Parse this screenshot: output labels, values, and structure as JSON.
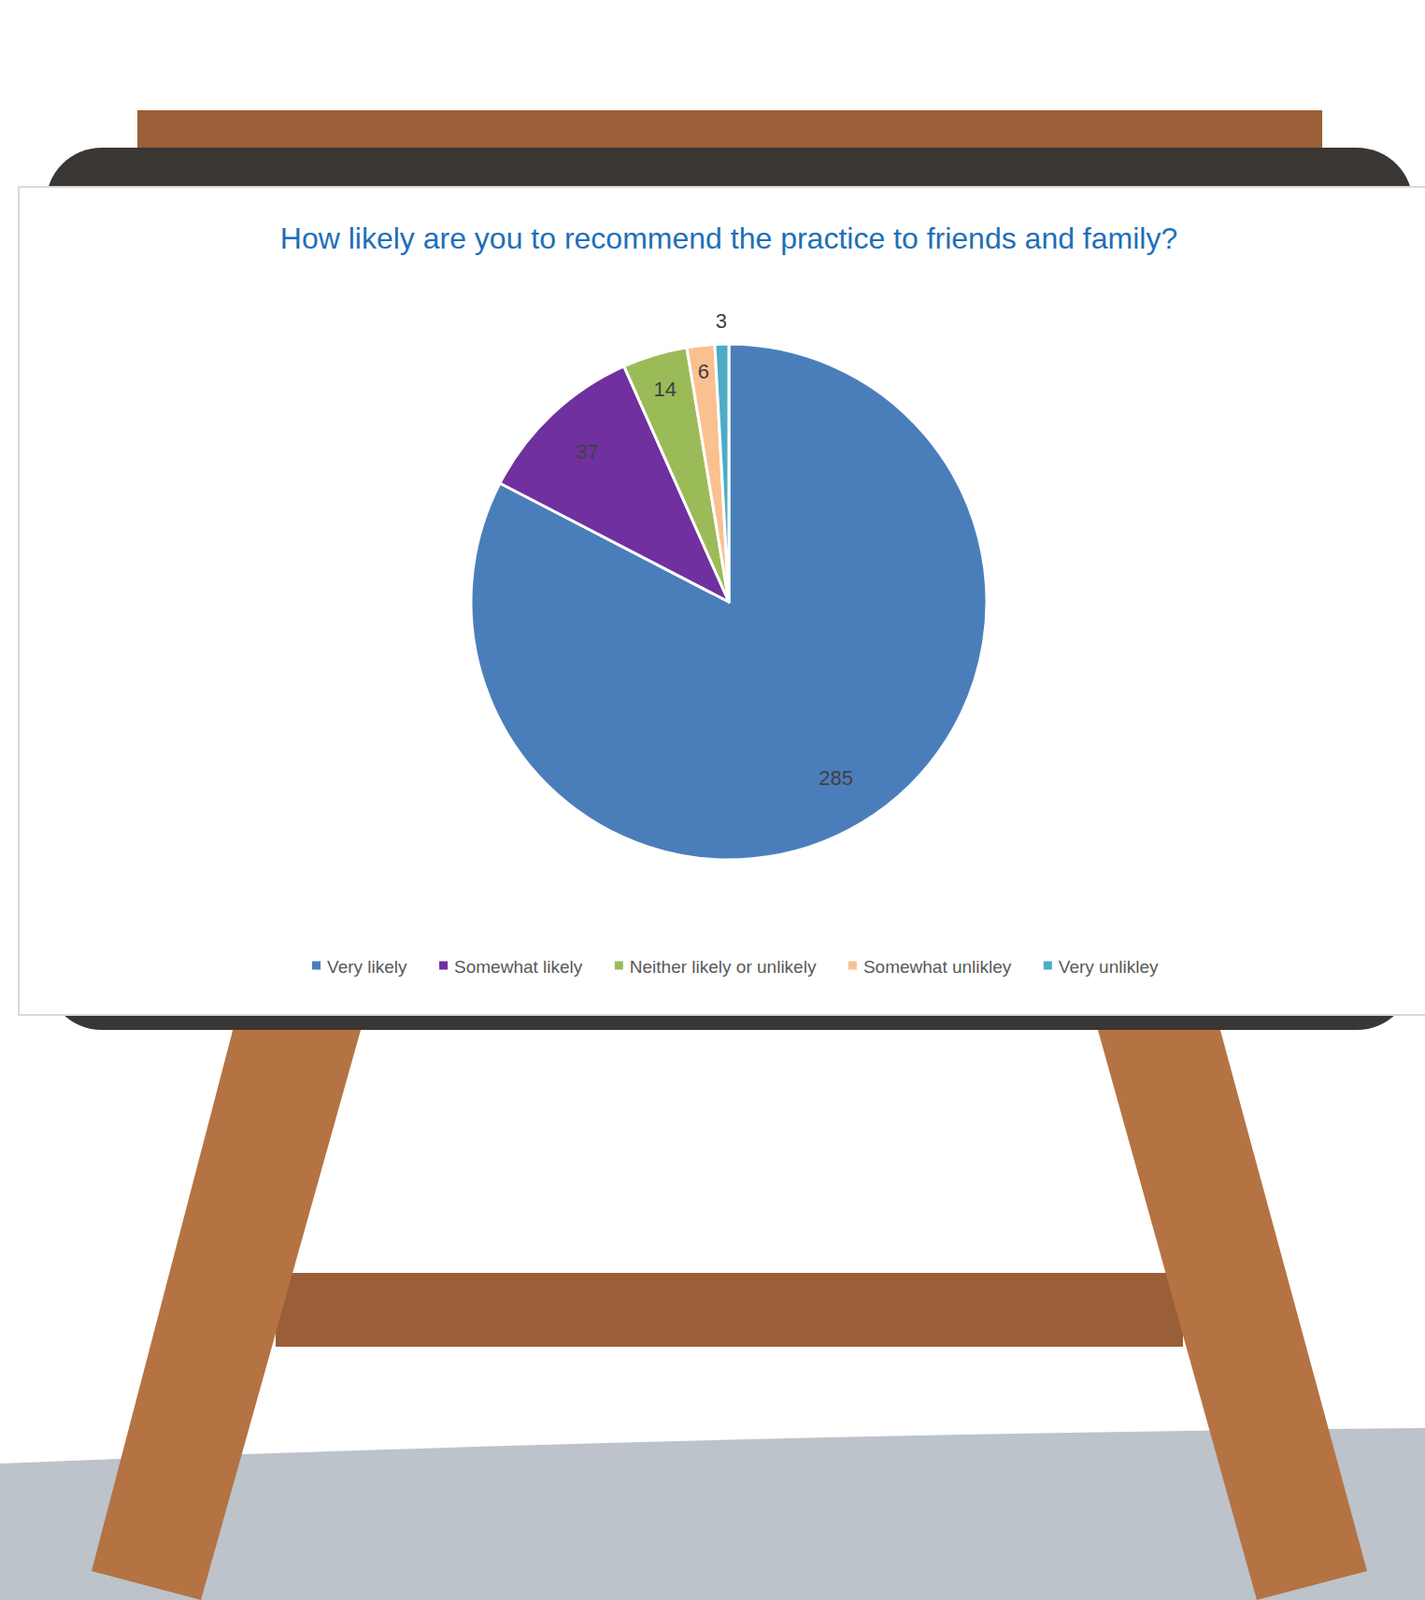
{
  "chart_data": {
    "type": "pie",
    "title": "How likely are you to recommend the practice to friends and family?",
    "categories": [
      "Very likely",
      "Somewhat likely",
      "Neither likely or unlikely",
      "Somewhat unlikley",
      "Very unlikley"
    ],
    "values": [
      285,
      37,
      14,
      6,
      3
    ],
    "colors": [
      "#4a7ebb",
      "#7030a0",
      "#9bbb59",
      "#fac090",
      "#4bacc6"
    ],
    "data_labels": true,
    "legend": "bottom"
  }
}
